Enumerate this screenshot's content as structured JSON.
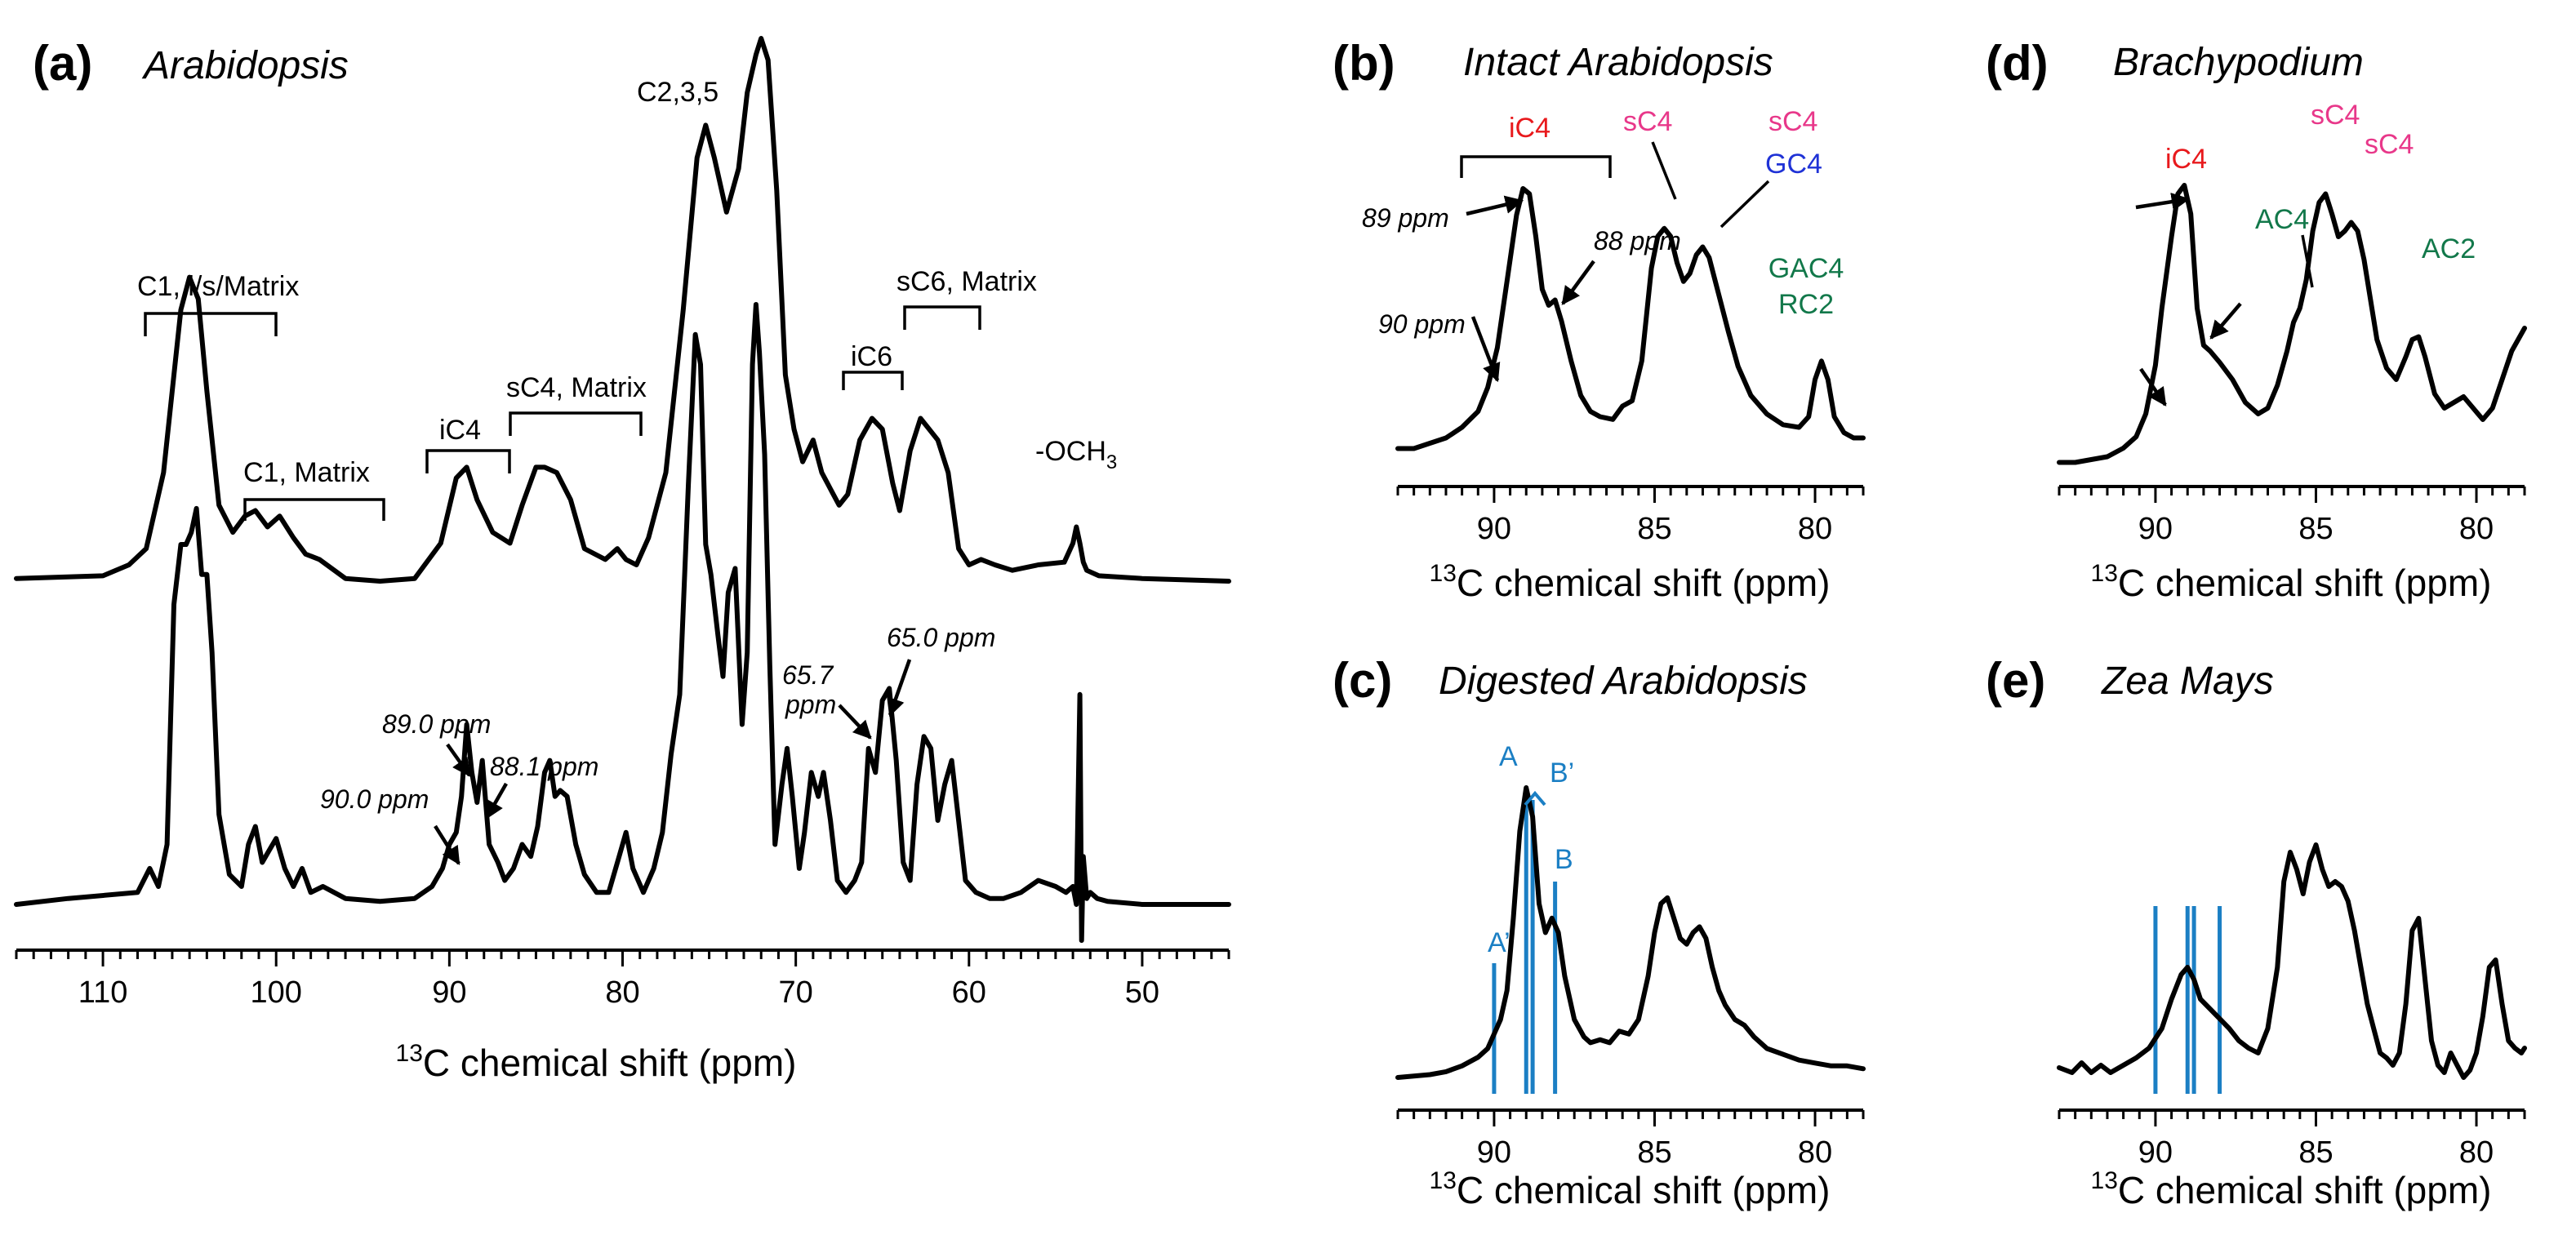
{
  "panels": {
    "a": {
      "label": "(a)",
      "title": "Arabidopsis",
      "xlabel": "chemical shift (ppm)",
      "xlabel_sup": "13",
      "xlabel_pre": "C"
    },
    "b": {
      "label": "(b)",
      "title": "Intact Arabidopsis",
      "xlabel": "chemical shift (ppm)",
      "xlabel_sup": "13",
      "xlabel_pre": "C"
    },
    "c": {
      "label": "(c)",
      "title": "Digested Arabidopsis",
      "xlabel": "chemical shift (ppm)",
      "xlabel_sup": "13",
      "xlabel_pre": "C"
    },
    "d": {
      "label": "(d)",
      "title": "Brachypodium",
      "xlabel": "chemical shift (ppm)",
      "xlabel_sup": "13",
      "xlabel_pre": "C"
    },
    "e": {
      "label": "(e)",
      "title": "Zea Mays",
      "xlabel": "chemical shift (ppm)",
      "xlabel_sup": "13",
      "xlabel_pre": "C"
    }
  },
  "annotations": {
    "a_upper": {
      "c1_all": "C1, i/s/Matrix",
      "c1_matrix": "C1, Matrix",
      "ic4": "iC4",
      "sc4_matrix": "sC4, Matrix",
      "c235": "C2,3,5",
      "ic6": "iC6",
      "sc6_matrix": "sC6, Matrix",
      "och3": "-OCH",
      "och3_sub": "3"
    },
    "a_lower": {
      "p900": "90.0 ppm",
      "p890": "89.0 ppm",
      "p881": "88.1 ppm",
      "p657a": "65.7",
      "p657b": "ppm",
      "p650": "65.0 ppm"
    },
    "b": {
      "ic4": "iC4",
      "sc4_left": "sC4",
      "sc4_right": "sC4",
      "gc4": "GC4",
      "gac4": "GAC4",
      "rc2": "RC2",
      "p89": "89 ppm",
      "p88": "88 ppm",
      "p90": "90 ppm"
    },
    "c": {
      "A": "A",
      "Bp": "B’",
      "B": "B",
      "Ap": "A’"
    },
    "d": {
      "ic4": "iC4",
      "ac4": "AC4",
      "sc4_left": "sC4",
      "sc4_right": "sC4",
      "ac2": "AC2"
    }
  },
  "colors": {
    "ic4": "#e8191c",
    "sc4": "#e8388a",
    "gc4": "#1f32d6",
    "green": "#12784a",
    "blue": "#1b7fc4",
    "line": "#000000"
  },
  "chart_data": [
    {
      "panel": "a",
      "type": "line",
      "xlim": [
        115,
        45
      ],
      "x_reversed": true,
      "y_axis": "none",
      "grid": false,
      "x_ticks": [
        110,
        100,
        90,
        80,
        70,
        60,
        50
      ],
      "series": [
        {
          "x": [
            115,
            110,
            108.5,
            107.5,
            106.5,
            105.5,
            105,
            104.5,
            104,
            103.3,
            102.5,
            101.8,
            101.2,
            100.5,
            99.8,
            99,
            98.3,
            97.5,
            96,
            94,
            92,
            90.5,
            89.6,
            89,
            88.4,
            87.5,
            86.5,
            85.8,
            85,
            84.5,
            83.8,
            83,
            82.2,
            81,
            80.3,
            79.8,
            79.2,
            78.5,
            77.5,
            76.5,
            75.7,
            75.2,
            74.7,
            74,
            73.3,
            72.8,
            72.3,
            72,
            71.6,
            71.1,
            70.6,
            70.1,
            69.6,
            69,
            68.5,
            68,
            67.5,
            67,
            66.3,
            65.6,
            65,
            64.4,
            64,
            63.4,
            62.8,
            62.3,
            61.8,
            61.2,
            60.6,
            60,
            59.3,
            58.5,
            57.5,
            56,
            54.5,
            54,
            53.8,
            53.6,
            53.4,
            53.2,
            52.5,
            50,
            45
          ],
          "y": [
            0.005,
            0.01,
            0.03,
            0.06,
            0.2,
            0.5,
            0.56,
            0.52,
            0.35,
            0.14,
            0.09,
            0.12,
            0.13,
            0.1,
            0.12,
            0.08,
            0.05,
            0.04,
            0.005,
            0,
            0.005,
            0.07,
            0.19,
            0.21,
            0.15,
            0.09,
            0.07,
            0.14,
            0.21,
            0.21,
            0.2,
            0.15,
            0.06,
            0.04,
            0.06,
            0.04,
            0.03,
            0.08,
            0.2,
            0.5,
            0.78,
            0.84,
            0.78,
            0.68,
            0.76,
            0.9,
            0.97,
            1.0,
            0.96,
            0.72,
            0.38,
            0.28,
            0.22,
            0.26,
            0.2,
            0.17,
            0.14,
            0.16,
            0.26,
            0.3,
            0.28,
            0.18,
            0.13,
            0.24,
            0.3,
            0.28,
            0.26,
            0.2,
            0.06,
            0.03,
            0.04,
            0.03,
            0.02,
            0.03,
            0.035,
            0.07,
            0.1,
            0.07,
            0.035,
            0.02,
            0.01,
            0.005,
            0
          ]
        },
        {
          "x": [
            115,
            112,
            108,
            107.3,
            106.8,
            106.3,
            105.9,
            105.5,
            105.2,
            104.9,
            104.6,
            104.3,
            104,
            103.7,
            103.3,
            102.7,
            102,
            101.6,
            101.2,
            100.8,
            100.4,
            100,
            99.5,
            99,
            98.5,
            98,
            97.3,
            96,
            94,
            92,
            91,
            90.4,
            90,
            89.6,
            89.3,
            89,
            88.7,
            88.4,
            88.1,
            87.7,
            87.2,
            86.8,
            86.3,
            85.8,
            85.3,
            84.9,
            84.5,
            84.2,
            83.9,
            83.6,
            83.2,
            82.7,
            82.2,
            81.5,
            80.8,
            80.2,
            79.8,
            79.4,
            78.8,
            78.2,
            77.7,
            77.2,
            76.7,
            76.2,
            75.8,
            75.5,
            75.2,
            74.9,
            74.5,
            74.2,
            73.9,
            73.5,
            73.1,
            72.8,
            72.5,
            72.3,
            72.1,
            71.8,
            71.5,
            71.2,
            70.8,
            70.5,
            70.2,
            69.8,
            69.5,
            69.1,
            68.7,
            68.4,
            68,
            67.6,
            67.1,
            66.6,
            66.2,
            65.8,
            65.4,
            65,
            64.6,
            64.2,
            63.8,
            63.4,
            63,
            62.6,
            62.2,
            61.8,
            61.4,
            61,
            60.6,
            60.2,
            59.6,
            58.8,
            58,
            57,
            56,
            55,
            54.4,
            54,
            53.8,
            53.6,
            53.5,
            53.4,
            53.2,
            53,
            52.6,
            52,
            50,
            47,
            45
          ],
          "y": [
            0,
            0.01,
            0.02,
            0.06,
            0.03,
            0.1,
            0.5,
            0.6,
            0.6,
            0.62,
            0.66,
            0.55,
            0.55,
            0.42,
            0.15,
            0.05,
            0.03,
            0.1,
            0.13,
            0.07,
            0.09,
            0.11,
            0.06,
            0.03,
            0.06,
            0.02,
            0.03,
            0.01,
            0.005,
            0.01,
            0.03,
            0.06,
            0.1,
            0.12,
            0.18,
            0.3,
            0.22,
            0.17,
            0.24,
            0.1,
            0.07,
            0.04,
            0.06,
            0.1,
            0.08,
            0.13,
            0.22,
            0.24,
            0.18,
            0.19,
            0.18,
            0.1,
            0.05,
            0.02,
            0.02,
            0.08,
            0.12,
            0.06,
            0.02,
            0.06,
            0.12,
            0.25,
            0.35,
            0.7,
            0.95,
            0.9,
            0.6,
            0.55,
            0.45,
            0.38,
            0.52,
            0.56,
            0.3,
            0.42,
            0.9,
            1.0,
            0.92,
            0.75,
            0.4,
            0.1,
            0.2,
            0.26,
            0.18,
            0.06,
            0.12,
            0.22,
            0.18,
            0.22,
            0.14,
            0.04,
            0.02,
            0.04,
            0.07,
            0.26,
            0.22,
            0.34,
            0.36,
            0.24,
            0.07,
            0.04,
            0.2,
            0.28,
            0.26,
            0.14,
            0.2,
            0.24,
            0.14,
            0.04,
            0.02,
            0.01,
            0.01,
            0.02,
            0.04,
            0.03,
            0.02,
            0.03,
            0.0,
            0.35,
            -0.06,
            0.08,
            0.01,
            0.02,
            0.01,
            0.005,
            0,
            0,
            0
          ]
        }
      ]
    },
    {
      "panel": "b",
      "type": "line",
      "xlim": [
        93,
        78.5
      ],
      "x_reversed": true,
      "y_axis": "none",
      "grid": false,
      "x_ticks": [
        90,
        85,
        80
      ],
      "series": [
        {
          "x": [
            93,
            92.5,
            92,
            91.5,
            91,
            90.5,
            90.2,
            89.9,
            89.6,
            89.3,
            89.1,
            88.9,
            88.7,
            88.5,
            88.3,
            88.1,
            87.9,
            87.6,
            87.3,
            87,
            86.7,
            86.3,
            86,
            85.7,
            85.4,
            85.1,
            84.9,
            84.7,
            84.5,
            84.3,
            84.1,
            83.9,
            83.7,
            83.5,
            83.3,
            83,
            82.7,
            82.4,
            82,
            81.5,
            81,
            80.5,
            80.2,
            80,
            79.8,
            79.6,
            79.4,
            79.1,
            78.8,
            78.5
          ],
          "y": [
            0.02,
            0.02,
            0.04,
            0.06,
            0.1,
            0.16,
            0.25,
            0.4,
            0.65,
            0.9,
            1.0,
            0.98,
            0.82,
            0.62,
            0.56,
            0.58,
            0.5,
            0.35,
            0.22,
            0.16,
            0.14,
            0.13,
            0.18,
            0.2,
            0.35,
            0.7,
            0.82,
            0.85,
            0.82,
            0.72,
            0.65,
            0.68,
            0.75,
            0.78,
            0.74,
            0.6,
            0.46,
            0.33,
            0.22,
            0.15,
            0.11,
            0.1,
            0.14,
            0.28,
            0.35,
            0.28,
            0.14,
            0.08,
            0.06,
            0.06
          ]
        }
      ]
    },
    {
      "panel": "c",
      "type": "line",
      "xlim": [
        93,
        78.5
      ],
      "x_reversed": true,
      "y_axis": "none",
      "grid": false,
      "x_ticks": [
        90,
        85,
        80
      ],
      "series": [
        {
          "x": [
            93,
            92,
            91.5,
            91,
            90.5,
            90.2,
            90,
            89.8,
            89.6,
            89.4,
            89.2,
            89,
            88.8,
            88.6,
            88.4,
            88.2,
            88,
            87.8,
            87.5,
            87.2,
            87,
            86.7,
            86.4,
            86.1,
            85.8,
            85.5,
            85.2,
            85,
            84.8,
            84.6,
            84.4,
            84.2,
            84,
            83.8,
            83.6,
            83.4,
            83.2,
            83,
            82.8,
            82.5,
            82.2,
            81.9,
            81.5,
            81,
            80.5,
            80,
            79.5,
            79,
            78.5
          ],
          "y": [
            0,
            0.01,
            0.02,
            0.04,
            0.07,
            0.1,
            0.15,
            0.2,
            0.3,
            0.55,
            0.85,
            1.0,
            0.9,
            0.6,
            0.5,
            0.55,
            0.5,
            0.35,
            0.2,
            0.14,
            0.12,
            0.13,
            0.12,
            0.16,
            0.15,
            0.2,
            0.35,
            0.5,
            0.6,
            0.62,
            0.55,
            0.48,
            0.46,
            0.5,
            0.52,
            0.48,
            0.38,
            0.3,
            0.25,
            0.2,
            0.18,
            0.14,
            0.1,
            0.08,
            0.06,
            0.05,
            0.04,
            0.04,
            0.03
          ]
        }
      ],
      "markers": [
        {
          "label": "A",
          "x": 89.0
        },
        {
          "label": "B’",
          "x": 88.8
        },
        {
          "label": "B",
          "x": 88.1
        },
        {
          "label": "A’",
          "x": 90.0
        }
      ]
    },
    {
      "panel": "d",
      "type": "line",
      "xlim": [
        93,
        78.5
      ],
      "x_reversed": true,
      "y_axis": "none",
      "grid": false,
      "x_ticks": [
        90,
        85,
        80
      ],
      "series": [
        {
          "x": [
            93,
            92.5,
            92,
            91.5,
            91,
            90.6,
            90.3,
            90,
            89.8,
            89.5,
            89.3,
            89.1,
            88.9,
            88.7,
            88.5,
            88.3,
            88,
            87.6,
            87.2,
            86.8,
            86.5,
            86.2,
            85.9,
            85.7,
            85.5,
            85.3,
            85.1,
            84.9,
            84.7,
            84.5,
            84.3,
            84.1,
            83.9,
            83.7,
            83.5,
            83.3,
            83.1,
            82.8,
            82.5,
            82.2,
            82,
            81.8,
            81.6,
            81.3,
            81,
            80.7,
            80.4,
            80.1,
            79.8,
            79.5,
            79.2,
            78.9,
            78.5
          ],
          "y": [
            0.01,
            0.01,
            0.02,
            0.03,
            0.06,
            0.1,
            0.18,
            0.35,
            0.55,
            0.8,
            0.95,
            0.98,
            0.88,
            0.55,
            0.42,
            0.4,
            0.36,
            0.3,
            0.22,
            0.18,
            0.2,
            0.28,
            0.4,
            0.5,
            0.55,
            0.65,
            0.82,
            0.92,
            0.95,
            0.88,
            0.8,
            0.82,
            0.85,
            0.82,
            0.72,
            0.58,
            0.44,
            0.34,
            0.3,
            0.38,
            0.44,
            0.45,
            0.38,
            0.25,
            0.2,
            0.22,
            0.24,
            0.2,
            0.16,
            0.2,
            0.3,
            0.4,
            0.48
          ]
        }
      ]
    },
    {
      "panel": "e",
      "type": "line",
      "xlim": [
        93,
        78.5
      ],
      "x_reversed": true,
      "y_axis": "none",
      "grid": false,
      "x_ticks": [
        90,
        85,
        80
      ],
      "series": [
        {
          "x": [
            93,
            92.6,
            92.3,
            92,
            91.7,
            91.4,
            91,
            90.6,
            90.2,
            89.8,
            89.5,
            89.2,
            89,
            88.8,
            88.6,
            88.3,
            88,
            87.7,
            87.4,
            87.1,
            86.8,
            86.5,
            86.2,
            86,
            85.8,
            85.6,
            85.4,
            85.2,
            85,
            84.8,
            84.6,
            84.4,
            84.2,
            84,
            83.8,
            83.6,
            83.4,
            83.2,
            83,
            82.8,
            82.6,
            82.4,
            82.2,
            82,
            81.8,
            81.6,
            81.4,
            81.2,
            81,
            80.8,
            80.6,
            80.4,
            80.2,
            80,
            79.8,
            79.6,
            79.4,
            79.2,
            79,
            78.8,
            78.6,
            78.5
          ],
          "y": [
            0.04,
            0.02,
            0.06,
            0.02,
            0.05,
            0.02,
            0.05,
            0.08,
            0.12,
            0.2,
            0.32,
            0.42,
            0.45,
            0.4,
            0.32,
            0.28,
            0.24,
            0.2,
            0.15,
            0.12,
            0.1,
            0.2,
            0.45,
            0.8,
            0.92,
            0.85,
            0.75,
            0.88,
            0.95,
            0.85,
            0.78,
            0.8,
            0.78,
            0.72,
            0.6,
            0.45,
            0.3,
            0.2,
            0.1,
            0.08,
            0.05,
            0.1,
            0.3,
            0.6,
            0.65,
            0.4,
            0.15,
            0.05,
            0.02,
            0.1,
            0.05,
            0.0,
            0.03,
            0.1,
            0.25,
            0.45,
            0.48,
            0.3,
            0.15,
            0.12,
            0.1,
            0.12
          ]
        }
      ],
      "markers": [
        {
          "label": "",
          "x": 90.0
        },
        {
          "label": "",
          "x": 89.0
        },
        {
          "label": "",
          "x": 88.8
        },
        {
          "label": "",
          "x": 88.0
        }
      ]
    }
  ]
}
